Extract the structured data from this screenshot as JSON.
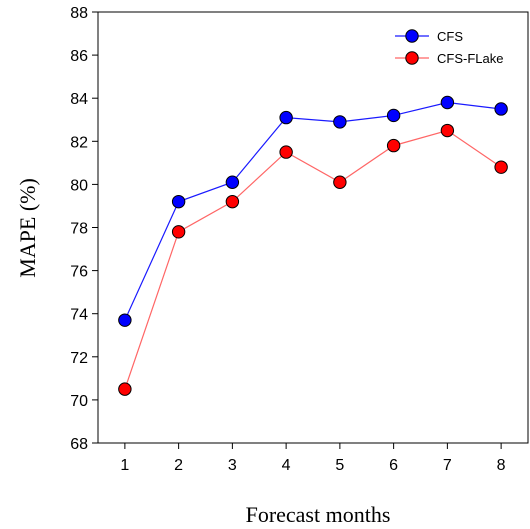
{
  "chart_data": {
    "type": "line",
    "title": "",
    "xlabel": "Forecast months",
    "ylabel": "MAPE (%)",
    "x": [
      1,
      2,
      3,
      4,
      5,
      6,
      7,
      8
    ],
    "xticks": [
      "1",
      "2",
      "3",
      "4",
      "5",
      "6",
      "7",
      "8"
    ],
    "xlim": [
      0.5,
      8.5
    ],
    "ylim": [
      68,
      88
    ],
    "yticks": [
      68,
      70,
      72,
      74,
      76,
      78,
      80,
      82,
      84,
      86,
      88
    ],
    "grid": false,
    "legend_position": "top-right",
    "series": [
      {
        "name": "CFS",
        "color": "#0000ff",
        "line_color": "#1a1aff",
        "values": [
          73.7,
          79.2,
          80.1,
          83.1,
          82.9,
          83.2,
          83.8,
          83.5
        ]
      },
      {
        "name": "CFS-FLake",
        "color": "#ff0000",
        "line_color": "#ff6666",
        "values": [
          70.5,
          77.8,
          79.2,
          81.5,
          80.1,
          81.8,
          82.5,
          80.8
        ]
      }
    ]
  }
}
